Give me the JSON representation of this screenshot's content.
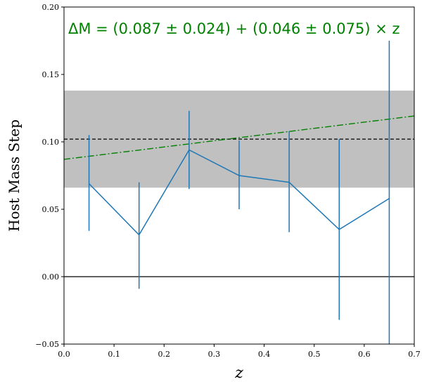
{
  "chart_data": {
    "type": "line",
    "xlabel": "z",
    "ylabel": "Host Mass Step",
    "xlim": [
      0.0,
      0.7
    ],
    "ylim": [
      -0.05,
      0.2
    ],
    "x_ticks": [
      "0.0",
      "0.1",
      "0.2",
      "0.3",
      "0.4",
      "0.5",
      "0.6",
      "0.7"
    ],
    "y_ticks": [
      "−0.05",
      "0.00",
      "0.05",
      "0.10",
      "0.15",
      "0.20"
    ],
    "annotation": "ΔM = (0.087 ± 0.024) + (0.046 ± 0.075) × z",
    "series": [
      {
        "x": [
          0.05,
          0.15,
          0.25,
          0.35,
          0.45,
          0.55,
          0.65
        ],
        "y": [
          0.069,
          0.031,
          0.094,
          0.075,
          0.07,
          0.035,
          0.058
        ],
        "yerr_low": [
          0.034,
          -0.009,
          0.065,
          0.05,
          0.033,
          -0.032,
          -0.05
        ],
        "yerr_high": [
          0.105,
          0.07,
          0.123,
          0.101,
          0.108,
          0.102,
          0.175
        ],
        "color": "#1f77b4"
      }
    ],
    "reference_band": {
      "low": 0.066,
      "high": 0.138,
      "center": 0.102,
      "color": "#c0c0c0"
    },
    "fit_line": {
      "intercept": 0.087,
      "slope": 0.046,
      "color": "#008000",
      "style": "dashdot"
    },
    "zero_line": {
      "y": 0.0,
      "color": "#000000"
    },
    "grid": false,
    "legend": "none"
  }
}
